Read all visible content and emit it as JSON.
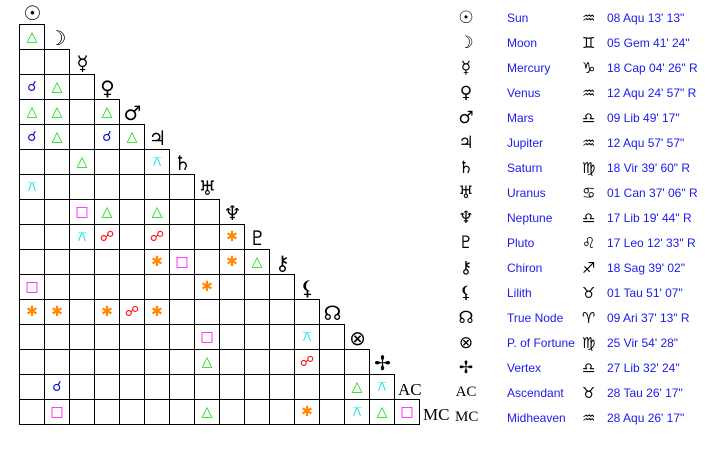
{
  "aspect_colors": {
    "trine": "#00dd00",
    "conjunction": "#1010cc",
    "square": "#ff00ff",
    "sextile": "#ff8800",
    "opposition": "#ff0000",
    "quincunx": "#00e0e0"
  },
  "aspect_symbols": {
    "trine": "△",
    "conjunction": "☌",
    "square": "□",
    "sextile": "✱",
    "opposition": "☍",
    "quincunx": "⚻"
  },
  "bodies": [
    {
      "glyph": "☉",
      "name": "Sun",
      "sign": "♒",
      "position": "08 Aqu 13' 13\""
    },
    {
      "glyph": "☽",
      "name": "Moon",
      "sign": "♊",
      "position": "05 Gem 41' 24\""
    },
    {
      "glyph": "☿",
      "name": "Mercury",
      "sign": "♑",
      "position": "18 Cap 04' 26\" R"
    },
    {
      "glyph": "♀",
      "name": "Venus",
      "sign": "♒",
      "position": "12 Aqu 24' 57\" R"
    },
    {
      "glyph": "♂",
      "name": "Mars",
      "sign": "♎",
      "position": "09 Lib 49' 17\""
    },
    {
      "glyph": "♃",
      "name": "Jupiter",
      "sign": "♒",
      "position": "12 Aqu 57' 57\""
    },
    {
      "glyph": "♄",
      "name": "Saturn",
      "sign": "♍",
      "position": "18 Vir 39' 60\" R"
    },
    {
      "glyph": "♅",
      "name": "Uranus",
      "sign": "♋",
      "position": "01 Can 37' 06\" R"
    },
    {
      "glyph": "♆",
      "name": "Neptune",
      "sign": "♎",
      "position": "17 Lib 19' 44\" R"
    },
    {
      "glyph": "♇",
      "name": "Pluto",
      "sign": "♌",
      "position": "17 Leo 12' 33\" R"
    },
    {
      "glyph": "⚷",
      "name": "Chiron",
      "sign": "♐",
      "position": "18 Sag 39' 02\""
    },
    {
      "glyph": "⚸",
      "name": "Lilith",
      "sign": "♉",
      "position": "01 Tau 51' 07\""
    },
    {
      "glyph": "☊",
      "name": "True Node",
      "sign": "♈",
      "position": "09 Ari 37' 13\" R"
    },
    {
      "glyph": "⊗",
      "name": "P. of Fortune",
      "sign": "♍",
      "position": "25 Vir 54' 28\""
    },
    {
      "glyph": "✢",
      "name": "Vertex",
      "sign": "♎",
      "position": "27 Lib 32' 24\""
    },
    {
      "glyph": "AC",
      "name": "Ascendant",
      "sign": "♉",
      "position": "28 Tau 26' 17\""
    },
    {
      "glyph": "MC",
      "name": "Midheaven",
      "sign": "♒",
      "position": "28 Aqu 26' 17\""
    }
  ],
  "aspect_grid": [
    [
      "trine"
    ],
    [
      "",
      ""
    ],
    [
      "conjunction",
      "trine",
      ""
    ],
    [
      "trine",
      "trine",
      "",
      "trine"
    ],
    [
      "conjunction",
      "trine",
      "",
      "conjunction",
      "trine"
    ],
    [
      "",
      "",
      "trine",
      "",
      "",
      "quincunx"
    ],
    [
      "quincunx",
      "",
      "",
      "",
      "",
      "",
      ""
    ],
    [
      "",
      "",
      "square",
      "trine",
      "",
      "trine",
      "",
      ""
    ],
    [
      "",
      "",
      "quincunx",
      "opposition",
      "",
      "opposition",
      "",
      "",
      "sextile"
    ],
    [
      "",
      "",
      "",
      "",
      "",
      "sextile",
      "square",
      "",
      "sextile",
      "trine"
    ],
    [
      "square",
      "",
      "",
      "",
      "",
      "",
      "",
      "sextile",
      "",
      "",
      ""
    ],
    [
      "sextile",
      "sextile",
      "",
      "sextile",
      "opposition",
      "sextile",
      "",
      "",
      "",
      "",
      "",
      ""
    ],
    [
      "",
      "",
      "",
      "",
      "",
      "",
      "",
      "square",
      "",
      "",
      "",
      "quincunx",
      ""
    ],
    [
      "",
      "",
      "",
      "",
      "",
      "",
      "",
      "trine",
      "",
      "",
      "",
      "opposition",
      "",
      ""
    ],
    [
      "",
      "conjunction",
      "",
      "",
      "",
      "",
      "",
      "",
      "",
      "",
      "",
      "",
      "",
      "trine",
      "quincunx"
    ],
    [
      "",
      "square",
      "",
      "",
      "",
      "",
      "",
      "trine",
      "",
      "",
      "",
      "sextile",
      "",
      "quincunx",
      "trine",
      "square"
    ]
  ]
}
